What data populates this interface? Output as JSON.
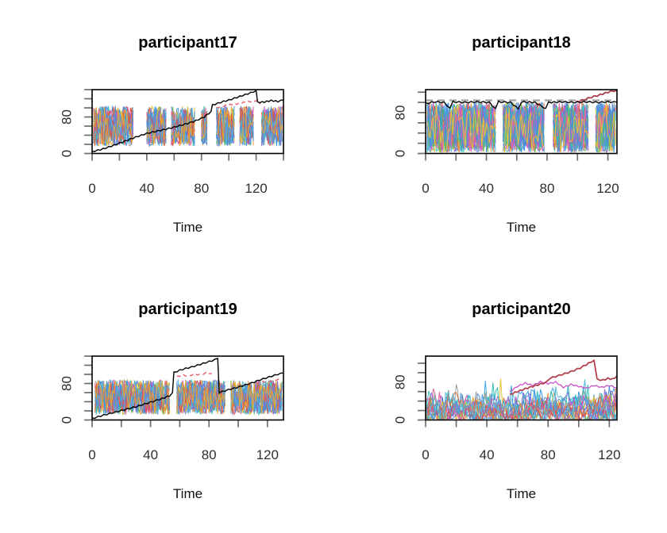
{
  "page": {
    "background": "#ffffff"
  },
  "colors": {
    "axis_box": "#000000",
    "tick": "#6e6e6e",
    "tick_label": "#2e2e2e",
    "title": "#000000",
    "noise_palette": [
      "#4f8fd8",
      "#e8a633",
      "#45a5e6",
      "#63bd4c",
      "#cb4fcb",
      "#5a82e0",
      "#2fbfb4",
      "#e8679e",
      "#4f8fd8",
      "#e3c438",
      "#9e9e9e",
      "#8a6cd8",
      "#3d9bdb",
      "#e2713c",
      "#da4f58",
      "#57b8d8"
    ]
  },
  "chart_data": [
    {
      "type": "line",
      "title": "participant17",
      "xlabel": "Time",
      "xlim": [
        0,
        140
      ],
      "ylim": [
        0,
        140
      ],
      "x_ticks": [
        0,
        20,
        40,
        60,
        80,
        100,
        120,
        140
      ],
      "x_labeled": [
        0,
        40,
        80,
        120
      ],
      "y_ticks": [
        0,
        20,
        40,
        60,
        80,
        100,
        120,
        140
      ],
      "y_labeled": [
        0,
        80
      ],
      "grid": false,
      "legend": "none",
      "highlight_series": [
        {
          "name": "red-dashed-line",
          "color": "#ee5c6e",
          "dash": "5 4",
          "width": 1.4,
          "style": "step-jitter",
          "segments": [
            [
              [
                91,
                100
              ],
              [
                96,
                104
              ],
              [
                101,
                107
              ],
              [
                106,
                109
              ],
              [
                111,
                112
              ],
              [
                116,
                114
              ],
              [
                121,
                116
              ],
              [
                123,
                108
              ]
            ]
          ]
        },
        {
          "name": "black-step-line",
          "color": "#000000",
          "dash": null,
          "width": 1.4,
          "style": "step-jitter",
          "segments": [
            [
              [
                0,
                4
              ],
              [
                8,
                10
              ],
              [
                16,
                18
              ],
              [
                24,
                27
              ],
              [
                32,
                36
              ],
              [
                40,
                44
              ],
              [
                46,
                48
              ],
              [
                52,
                52
              ],
              [
                58,
                56
              ],
              [
                64,
                61
              ],
              [
                70,
                66
              ],
              [
                76,
                72
              ],
              [
                82,
                80
              ],
              [
                87,
                92
              ],
              [
                88,
                106
              ],
              [
                92,
                110
              ],
              [
                96,
                114
              ],
              [
                100,
                117
              ],
              [
                104,
                121
              ],
              [
                108,
                125
              ],
              [
                112,
                129
              ],
              [
                116,
                133
              ],
              [
                120,
                138
              ],
              [
                121,
                112
              ],
              [
                126,
                113
              ],
              [
                131,
                116
              ],
              [
                136,
                114
              ],
              [
                140,
                117
              ]
            ]
          ]
        }
      ],
      "noise": {
        "style": "swing",
        "n_series": 18,
        "seed": 171,
        "x_start": 1,
        "x_end": 139,
        "band": [
          16,
          104
        ],
        "gaps": [
          [
            31,
            39
          ],
          [
            55,
            57
          ],
          [
            76,
            79
          ],
          [
            85,
            90
          ],
          [
            105,
            107
          ],
          [
            119,
            123
          ]
        ]
      }
    },
    {
      "type": "line",
      "title": "participant18",
      "xlabel": "Time",
      "xlim": [
        0,
        126
      ],
      "ylim": [
        0,
        125
      ],
      "x_ticks": [
        0,
        20,
        40,
        60,
        80,
        100,
        120
      ],
      "x_labeled": [
        0,
        40,
        80,
        120
      ],
      "y_ticks": [
        0,
        20,
        40,
        60,
        80,
        100,
        120
      ],
      "y_labeled": [
        0,
        80
      ],
      "grid": false,
      "legend": "none",
      "highlight_series": [
        {
          "name": "gray-dashed-line",
          "color": "#a3a3a3",
          "dash": "9 6",
          "width": 2.2,
          "style": "plain",
          "segments": [
            [
              [
                0,
                104
              ],
              [
                126,
                104
              ]
            ]
          ]
        },
        {
          "name": "dark-red-line",
          "color": "#a8404d",
          "dash": null,
          "width": 1.8,
          "style": "step-jitter",
          "segments": [
            [
              [
                99,
                101
              ],
              [
                103,
                104
              ],
              [
                109,
                110
              ],
              [
                115,
                115
              ],
              [
                120,
                120
              ],
              [
                126,
                124
              ]
            ]
          ]
        },
        {
          "name": "black-step-line",
          "color": "#000000",
          "dash": null,
          "width": 1.4,
          "style": "step-jitter",
          "segments": [
            [
              [
                0,
                98
              ],
              [
                6,
                101
              ],
              [
                12,
                100
              ],
              [
                16,
                89
              ],
              [
                18,
                101
              ],
              [
                26,
                100
              ],
              [
                34,
                101
              ],
              [
                42,
                100
              ],
              [
                46,
                88
              ],
              [
                48,
                101
              ],
              [
                56,
                100
              ],
              [
                61,
                87
              ],
              [
                63,
                101
              ],
              [
                72,
                100
              ],
              [
                79,
                88
              ],
              [
                81,
                100
              ],
              [
                90,
                101
              ],
              [
                98,
                100
              ],
              [
                106,
                101
              ],
              [
                114,
                100
              ],
              [
                120,
                101
              ],
              [
                126,
                100
              ]
            ]
          ]
        }
      ],
      "noise": {
        "style": "swing",
        "n_series": 26,
        "seed": 182,
        "x_start": 1,
        "x_end": 125,
        "band": [
          2,
          100
        ],
        "gaps": [
          [
            47,
            50
          ],
          [
            79,
            83
          ],
          [
            108,
            111
          ]
        ]
      }
    },
    {
      "type": "line",
      "title": "participant19",
      "xlabel": "Time",
      "xlim": [
        0,
        131
      ],
      "ylim": [
        0,
        140
      ],
      "x_ticks": [
        0,
        20,
        40,
        60,
        80,
        100,
        120
      ],
      "x_labeled": [
        0,
        40,
        80,
        120
      ],
      "y_ticks": [
        0,
        20,
        40,
        60,
        80,
        100,
        120,
        140
      ],
      "y_labeled": [
        0,
        80
      ],
      "grid": false,
      "legend": "none",
      "highlight_series": [
        {
          "name": "red-dashed-line",
          "color": "#ee5c6e",
          "dash": "5 4",
          "width": 1.4,
          "style": "step-jitter",
          "segments": [
            [
              [
                58,
                95
              ],
              [
                62,
                99
              ],
              [
                66,
                96
              ],
              [
                70,
                101
              ],
              [
                74,
                99
              ],
              [
                78,
                103
              ],
              [
                82,
                102
              ]
            ],
            [
              [
                112,
                81
              ],
              [
                116,
                85
              ],
              [
                120,
                83
              ],
              [
                124,
                87
              ],
              [
                128,
                90
              ]
            ]
          ]
        },
        {
          "name": "black-step-line",
          "color": "#000000",
          "dash": null,
          "width": 1.4,
          "style": "step-jitter",
          "segments": [
            [
              [
                0,
                3
              ],
              [
                6,
                9
              ],
              [
                12,
                14
              ],
              [
                18,
                19
              ],
              [
                24,
                24
              ],
              [
                30,
                29
              ],
              [
                36,
                35
              ],
              [
                42,
                41
              ],
              [
                48,
                47
              ],
              [
                53,
                53
              ],
              [
                55,
                60
              ],
              [
                56,
                104
              ],
              [
                60,
                109
              ],
              [
                64,
                113
              ],
              [
                68,
                116
              ],
              [
                72,
                120
              ],
              [
                76,
                124
              ],
              [
                80,
                128
              ],
              [
                84,
                132
              ],
              [
                86,
                135
              ],
              [
                87,
                60
              ],
              [
                91,
                64
              ],
              [
                95,
                68
              ],
              [
                99,
                71
              ],
              [
                103,
                75
              ],
              [
                107,
                79
              ],
              [
                111,
                83
              ],
              [
                115,
                88
              ],
              [
                119,
                92
              ],
              [
                123,
                96
              ],
              [
                127,
                100
              ],
              [
                131,
                103
              ]
            ]
          ]
        }
      ],
      "noise": {
        "style": "swing",
        "n_series": 18,
        "seed": 193,
        "x_start": 2,
        "x_end": 130,
        "band": [
          12,
          88
        ],
        "gaps": [
          [
            54,
            57
          ],
          [
            92,
            94
          ]
        ]
      }
    },
    {
      "type": "line",
      "title": "participant20",
      "xlabel": "Time",
      "xlim": [
        0,
        125
      ],
      "ylim": [
        0,
        135
      ],
      "x_ticks": [
        0,
        20,
        40,
        60,
        80,
        100,
        120
      ],
      "x_labeled": [
        0,
        40,
        80,
        120
      ],
      "y_ticks": [
        0,
        20,
        40,
        60,
        80,
        100,
        120
      ],
      "y_labeled": [
        0,
        80
      ],
      "grid": false,
      "legend": "none",
      "highlight_series": [
        {
          "name": "magenta-line",
          "color": "#cb4fcb",
          "dash": null,
          "width": 1.3,
          "style": "step-jitter",
          "segments": [
            [
              [
                55,
                60
              ],
              [
                60,
                71
              ],
              [
                65,
                78
              ],
              [
                70,
                73
              ],
              [
                75,
                81
              ],
              [
                80,
                77
              ],
              [
                85,
                80
              ],
              [
                90,
                69
              ],
              [
                95,
                75
              ],
              [
                100,
                71
              ],
              [
                105,
                67
              ],
              [
                110,
                73
              ],
              [
                115,
                69
              ],
              [
                120,
                73
              ],
              [
                125,
                68
              ]
            ]
          ]
        },
        {
          "name": "dark-red-line",
          "color": "#b2434e",
          "dash": null,
          "width": 1.8,
          "style": "step-jitter",
          "segments": [
            [
              [
                55,
                54
              ],
              [
                60,
                60
              ],
              [
                65,
                66
              ],
              [
                70,
                71
              ],
              [
                75,
                76
              ],
              [
                79,
                80
              ],
              [
                81,
                88
              ],
              [
                85,
                92
              ],
              [
                89,
                96
              ],
              [
                93,
                100
              ],
              [
                97,
                105
              ],
              [
                101,
                110
              ],
              [
                105,
                117
              ],
              [
                108,
                123
              ],
              [
                110,
                126
              ],
              [
                112,
                86
              ],
              [
                116,
                84
              ],
              [
                119,
                88
              ],
              [
                122,
                86
              ],
              [
                125,
                93
              ]
            ]
          ]
        }
      ],
      "noise": {
        "style": "spiky",
        "n_series": 16,
        "seed": 204,
        "x_start": 0,
        "x_end": 125,
        "band": [
          0,
          85
        ],
        "gaps": []
      }
    }
  ]
}
